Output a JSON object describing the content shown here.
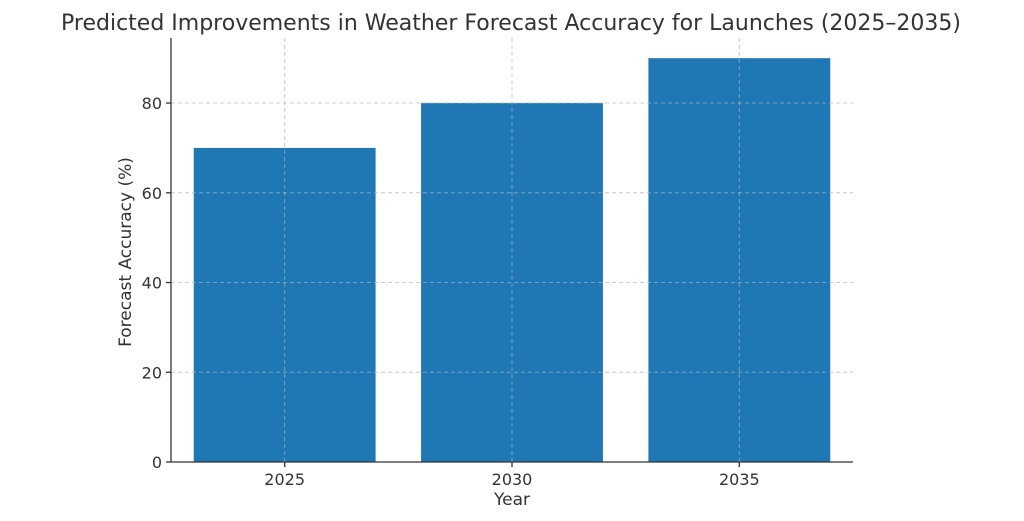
{
  "chart_data": {
    "type": "bar",
    "title": "Predicted Improvements in Weather Forecast Accuracy for Launches (2025–2035)",
    "xlabel": "Year",
    "ylabel": "Forecast Accuracy (%)",
    "categories": [
      "2025",
      "2030",
      "2035"
    ],
    "values": [
      70,
      80,
      90
    ],
    "ylim": [
      0,
      94.5
    ],
    "yticks": [
      0,
      20,
      40,
      60,
      80
    ],
    "grid": true,
    "bar_color": "#1f77b4",
    "grid_color": "#cfcfcf",
    "text_color": "#333333"
  }
}
